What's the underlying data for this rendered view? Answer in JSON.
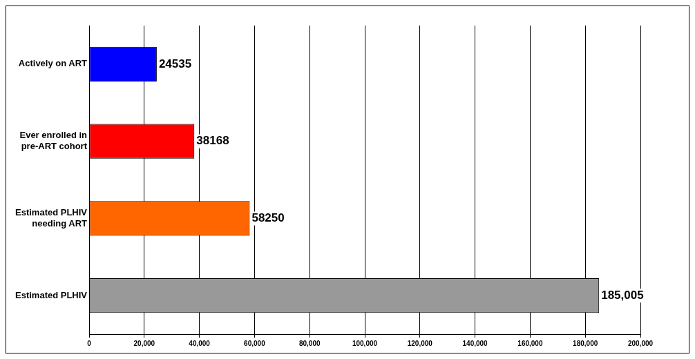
{
  "chart_data": {
    "type": "bar",
    "orientation": "horizontal",
    "categories": [
      "Actively on ART",
      "Ever enrolled in pre-ART cohort",
      "Estimated PLHIV needing ART",
      "Estimated PLHIV"
    ],
    "values": [
      24535,
      38168,
      58250,
      185005
    ],
    "colors": [
      "#0000ff",
      "#ff0000",
      "#ff6600",
      "#999999"
    ],
    "value_labels": [
      "24535",
      "38168",
      "58250",
      "185,005"
    ],
    "xlim": [
      0,
      200000
    ],
    "xticks": [
      0,
      {
        "value": 20000,
        "label": "20,000"
      },
      {
        "value": 40000,
        "label": "40,000"
      },
      {
        "value": 60000,
        "label": "60,000"
      },
      {
        "value": 80000,
        "label": "80,000"
      },
      {
        "value": 100000,
        "label": "100,000"
      },
      {
        "value": 120000,
        "label": "120,000"
      },
      {
        "value": 140000,
        "label": "140,000"
      },
      {
        "value": 160000,
        "label": "160,000"
      },
      {
        "value": 180000,
        "label": "180,000"
      },
      {
        "value": 200000,
        "label": "200,000"
      }
    ],
    "grid": "x",
    "legend": false
  }
}
